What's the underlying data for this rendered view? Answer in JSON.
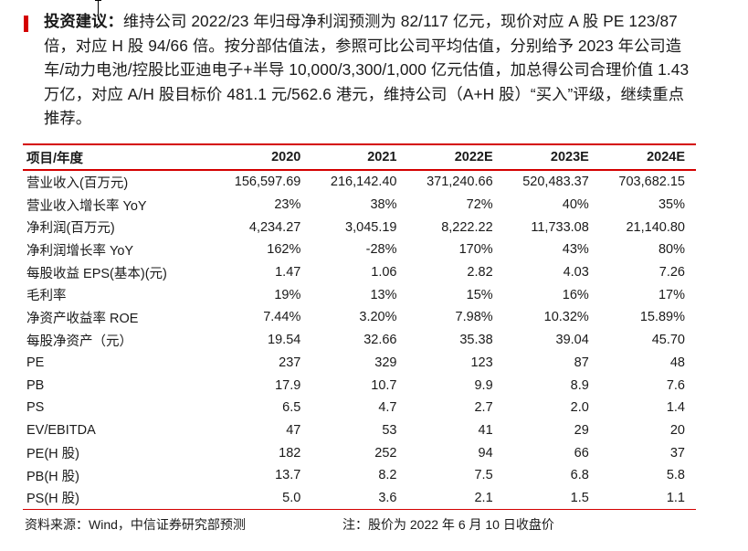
{
  "recommendation": {
    "label": "投资建议：",
    "text": "维持公司 2022/23 年归母净利润预测为 82/117 亿元，现价对应 A 股 PE 123/87 倍，对应 H 股 94/66 倍。按分部估值法，参照可比公司平均估值，分别给予 2023 年公司造车/动力电池/控股比亚迪电子+半导 10,000/3,300/1,000 亿元估值，加总得公司合理价值 1.43 万亿，对应 A/H 股目标价 481.1 元/562.6 港元，维持公司（A+H 股）“买入”评级，继续重点推荐。"
  },
  "table": {
    "headers": [
      "项目/年度",
      "2020",
      "2021",
      "2022E",
      "2023E",
      "2024E"
    ],
    "rows": [
      [
        "营业收入(百万元)",
        "156,597.69",
        "216,142.40",
        "371,240.66",
        "520,483.37",
        "703,682.15"
      ],
      [
        "营业收入增长率 YoY",
        "23%",
        "38%",
        "72%",
        "40%",
        "35%"
      ],
      [
        "净利润(百万元)",
        "4,234.27",
        "3,045.19",
        "8,222.22",
        "11,733.08",
        "21,140.80"
      ],
      [
        "净利润增长率 YoY",
        "162%",
        "-28%",
        "170%",
        "43%",
        "80%"
      ],
      [
        "每股收益 EPS(基本)(元)",
        "1.47",
        "1.06",
        "2.82",
        "4.03",
        "7.26"
      ],
      [
        "毛利率",
        "19%",
        "13%",
        "15%",
        "16%",
        "17%"
      ],
      [
        "净资产收益率 ROE",
        "7.44%",
        "3.20%",
        "7.98%",
        "10.32%",
        "15.89%"
      ],
      [
        "每股净资产（元）",
        "19.54",
        "32.66",
        "35.38",
        "39.04",
        "45.70"
      ],
      [
        "PE",
        "237",
        "329",
        "123",
        "87",
        "48"
      ],
      [
        "PB",
        "17.9",
        "10.7",
        "9.9",
        "8.9",
        "7.6"
      ],
      [
        "PS",
        "6.5",
        "4.7",
        "2.7",
        "2.0",
        "1.4"
      ],
      [
        "EV/EBITDA",
        "47",
        "53",
        "41",
        "29",
        "20"
      ],
      [
        "PE(H 股)",
        "182",
        "252",
        "94",
        "66",
        "37"
      ],
      [
        "PB(H 股)",
        "13.7",
        "8.2",
        "7.5",
        "6.8",
        "5.8"
      ],
      [
        "PS(H 股)",
        "5.0",
        "3.6",
        "2.1",
        "1.5",
        "1.1"
      ]
    ]
  },
  "footer": {
    "source": "资料来源：Wind，中信证券研究部预测",
    "note": "注：股价为 2022 年 6 月 10 日收盘价"
  }
}
